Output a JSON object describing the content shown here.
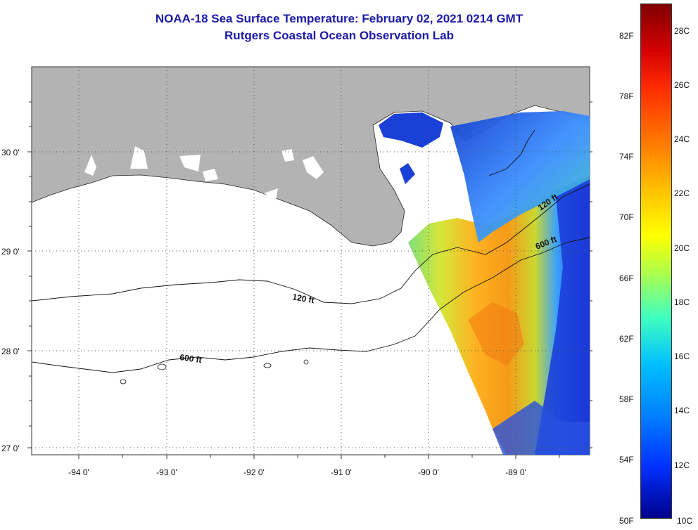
{
  "header": {
    "title": "NOAA-18 Sea Surface Temperature:  February 02, 2021 0214 GMT",
    "subtitle": "Rutgers Coastal Ocean Observation Lab"
  },
  "map": {
    "lat_labels": [
      "30 0'",
      "29 0'",
      "28 0'",
      "27 0'"
    ],
    "lon_labels": [
      "-94 0'",
      "-93 0'",
      "-92 0'",
      "-91 0'",
      "-90 0'",
      "-89 0'"
    ],
    "contour_labels": {
      "shelf_120_west": "120 ft",
      "shelf_600_west": "600 ft",
      "shelf_120_east": "120 ft",
      "shelf_600_east": "600 ft"
    },
    "colors": {
      "land": "#b3b3b3",
      "background": "#ffffff"
    }
  },
  "colorbar": {
    "fahrenheit": [
      "82F",
      "78F",
      "74F",
      "70F",
      "66F",
      "62F",
      "58F",
      "54F",
      "50F"
    ],
    "celsius": [
      "28C",
      "26C",
      "24C",
      "22C",
      "20C",
      "18C",
      "16C",
      "14C",
      "12C",
      "10C"
    ],
    "range_f": [
      50,
      84
    ],
    "range_c": [
      10,
      29
    ]
  }
}
